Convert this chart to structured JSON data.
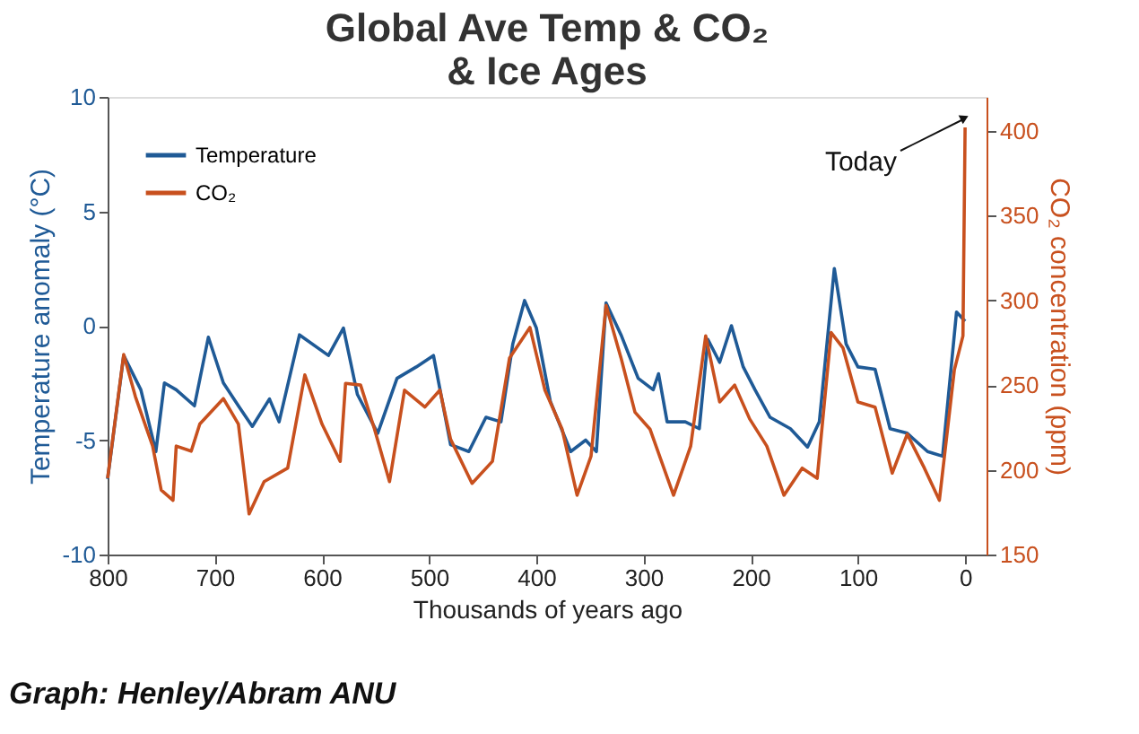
{
  "chart_data": {
    "type": "line",
    "title": "Global Ave Temp & CO₂\n& Ice Ages",
    "xlabel": "Thousands of years ago",
    "ylabel": "Temperature anomaly (°C)",
    "y2label": "CO₂ concentration (ppm)",
    "xlim": [
      800,
      -20
    ],
    "xticks": [
      800,
      700,
      600,
      500,
      400,
      300,
      200,
      100,
      0
    ],
    "ylim": [
      -10,
      10
    ],
    "yticks": [
      -10,
      -5,
      0,
      5,
      10
    ],
    "y2lim": [
      150,
      420
    ],
    "y2ticks": [
      150,
      200,
      250,
      300,
      350,
      400
    ],
    "legend": "top left",
    "grid": false,
    "marker": "none",
    "line_style": "solid",
    "annotations": [
      "Today",
      "Graph: Henley/Abram ANU"
    ],
    "series": [
      {
        "name": "Temperature",
        "color": "#1f5a96",
        "x": [
          800,
          785,
          769,
          755,
          747,
          736,
          719,
          706,
          692,
          678,
          665,
          649,
          640,
          621,
          594,
          580,
          567,
          548,
          530,
          512,
          496,
          480,
          463,
          447,
          433,
          422,
          411,
          400,
          387,
          368,
          354,
          344,
          335,
          321,
          305,
          291,
          286,
          278,
          261,
          248,
          240,
          229,
          218,
          207,
          196,
          182,
          163,
          147,
          136,
          122,
          111,
          100,
          84,
          70,
          54,
          35,
          21,
          8,
          0
        ],
        "values": [
          -6.7,
          -1.3,
          -2.8,
          -5.5,
          -2.5,
          -2.8,
          -3.5,
          -0.5,
          -2.5,
          -3.5,
          -4.4,
          -3.2,
          -4.2,
          -0.4,
          -1.3,
          -0.1,
          -3.0,
          -4.7,
          -2.3,
          -1.8,
          -1.3,
          -5.2,
          -5.5,
          -4.0,
          -4.2,
          -0.8,
          1.1,
          -0.1,
          -3.3,
          -5.5,
          -5.0,
          -5.5,
          1.0,
          -0.4,
          -2.3,
          -2.8,
          -2.1,
          -4.2,
          -4.2,
          -4.5,
          -0.6,
          -1.6,
          0.0,
          -1.8,
          -2.8,
          -4.0,
          -4.5,
          -5.3,
          -4.2,
          2.5,
          -0.8,
          -1.8,
          -1.9,
          -4.5,
          -4.7,
          -5.5,
          -5.7,
          0.6,
          0.2
        ]
      },
      {
        "name": "CO₂",
        "color": "#c8501e",
        "axis": "y2",
        "x": [
          800,
          785,
          774,
          758,
          750,
          739,
          736,
          722,
          714,
          692,
          678,
          668,
          654,
          632,
          616,
          600,
          583,
          578,
          564,
          551,
          537,
          523,
          504,
          490,
          480,
          460,
          441,
          425,
          406,
          392,
          376,
          362,
          349,
          335,
          321,
          308,
          294,
          272,
          256,
          242,
          229,
          215,
          201,
          185,
          169,
          152,
          138,
          125,
          114,
          100,
          84,
          68,
          54,
          38,
          24,
          10,
          2,
          0
        ],
        "values": [
          195,
          268,
          243,
          214,
          188,
          182,
          214,
          211,
          227,
          242,
          227,
          174,
          193,
          201,
          256,
          227,
          205,
          251,
          250,
          224,
          193,
          247,
          237,
          247,
          218,
          192,
          205,
          266,
          284,
          247,
          224,
          185,
          208,
          297,
          266,
          234,
          224,
          185,
          214,
          279,
          240,
          250,
          230,
          214,
          185,
          201,
          195,
          281,
          272,
          240,
          237,
          198,
          221,
          201,
          182,
          259,
          279,
          402
        ]
      }
    ]
  }
}
